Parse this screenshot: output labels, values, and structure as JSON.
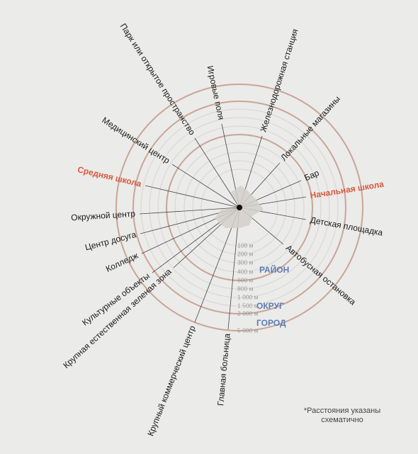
{
  "scale": [
    "100 м",
    "200 м",
    "300 м",
    "400 м",
    "600 м",
    "800 м",
    "1 000 м",
    "1 500 м",
    "2 000 м",
    "5 000 м"
  ],
  "zones": [
    "РАЙОН",
    "ОКРУГ",
    "ГОРОД"
  ],
  "spokes": [
    {
      "label": "Игровые поля"
    },
    {
      "label": "Парк или открытое пространство"
    },
    {
      "label": "Медицинский центр"
    },
    {
      "label": "Средняя школа",
      "highlight": true
    },
    {
      "label": "Окружной центр"
    },
    {
      "label": "Центр досуга"
    },
    {
      "label": "Колледж"
    },
    {
      "label": "Крупная естественная зеленая зона"
    },
    {
      "label": "Культурные объекты"
    },
    {
      "label": "Крупный коммерческий центр"
    },
    {
      "label": "Главная больница"
    },
    {
      "label": "Железнодорожная станция"
    },
    {
      "label": "Локальные магазины"
    },
    {
      "label": "Бар"
    },
    {
      "label": "Начальная школа",
      "highlight": true
    },
    {
      "label": "Детская площадка"
    },
    {
      "label": "Автобусная остановка"
    }
  ],
  "footnote": [
    "*Расстояния указаны",
    "схематично"
  ]
}
